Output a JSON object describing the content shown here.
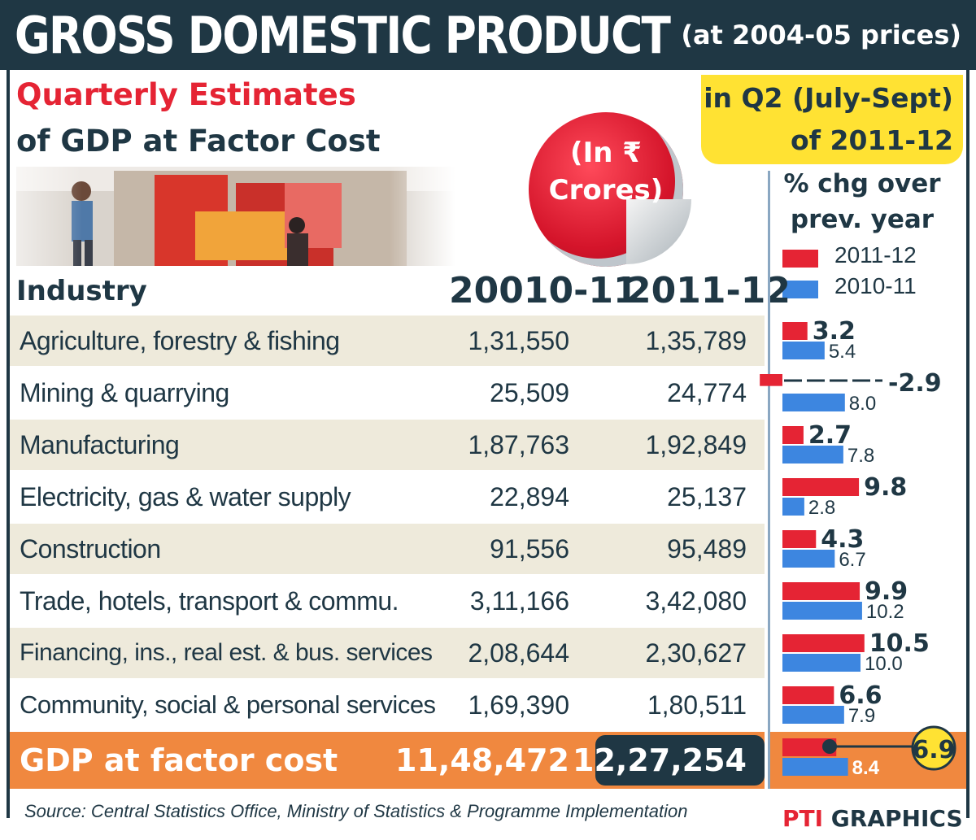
{
  "header": {
    "title": "GROSS DOMESTIC PRODUCT",
    "prices_note": "(at 2004-05 prices)",
    "subtitle_line1": "Quarterly Estimates",
    "subtitle_line2": "of GDP at Factor Cost",
    "unit_badge": "(In ₹ Crores)",
    "period_line1": "in Q2 (July-Sept)",
    "period_line2": "of 2011-12",
    "chart_title_line1": "% chg over",
    "chart_title_line2": "prev. year"
  },
  "table": {
    "columns": [
      "Industry",
      "20010-11",
      "2011-12"
    ],
    "rows": [
      {
        "industry": "Agriculture, forestry & fishing",
        "v2010_11": "1,31,550",
        "v2011_12": "1,35,789"
      },
      {
        "industry": "Mining & quarrying",
        "v2010_11": "25,509",
        "v2011_12": "24,774"
      },
      {
        "industry": "Manufacturing",
        "v2010_11": "1,87,763",
        "v2011_12": "1,92,849"
      },
      {
        "industry": "Electricity, gas & water supply",
        "v2010_11": "22,894",
        "v2011_12": "25,137"
      },
      {
        "industry": "Construction",
        "v2010_11": "91,556",
        "v2011_12": "95,489"
      },
      {
        "industry": "Trade, hotels, transport & commu.",
        "v2010_11": "3,11,166",
        "v2011_12": "3,42,080"
      },
      {
        "industry": "Financing, ins., real est. & bus. services",
        "v2010_11": "2,08,644",
        "v2011_12": "2,30,627"
      },
      {
        "industry": "Community, social & personal services",
        "v2010_11": "1,69,390",
        "v2011_12": "1,80,511"
      }
    ],
    "total": {
      "industry": "GDP at factor cost",
      "v2010_11": "11,48,472",
      "v2011_12": "12,27,254"
    }
  },
  "colors": {
    "navy": "#1f3744",
    "red": "#e52434",
    "blue": "#3d86e0",
    "yellow": "#ffe233",
    "orange": "#f0883f",
    "shade": "#eeeadb"
  },
  "chart_data": {
    "type": "bar",
    "orientation": "horizontal",
    "categories": [
      "Agriculture, forestry & fishing",
      "Mining & quarrying",
      "Manufacturing",
      "Electricity, gas & water supply",
      "Construction",
      "Trade, hotels, transport & commu.",
      "Financing, ins., real est. & bus. services",
      "Community, social & personal services",
      "GDP at factor cost"
    ],
    "series": [
      {
        "name": "2011-12",
        "color": "#e52434",
        "values": [
          3.2,
          -2.9,
          2.7,
          9.8,
          4.3,
          9.9,
          10.5,
          6.6,
          6.9
        ],
        "labels": [
          "3.2",
          "-2.9",
          "2.7",
          "9.8",
          "4.3",
          "9.9",
          "10.5",
          "6.6",
          "6.9"
        ]
      },
      {
        "name": "2010-11",
        "color": "#3d86e0",
        "values": [
          5.4,
          8.0,
          7.8,
          2.8,
          6.7,
          10.2,
          10.0,
          7.9,
          8.4
        ],
        "labels": [
          "5.4",
          "8.0",
          "7.8",
          "2.8",
          "6.7",
          "10.2",
          "10.0",
          "7.9",
          "8.4"
        ]
      }
    ],
    "title": "% chg over prev. year",
    "legend": "top"
  },
  "footer": {
    "source": "Source: Central Statistics Office, Ministry of Statistics & Programme Implementation",
    "credit_brand": "PTI",
    "credit_text": "GRAPHICS"
  }
}
